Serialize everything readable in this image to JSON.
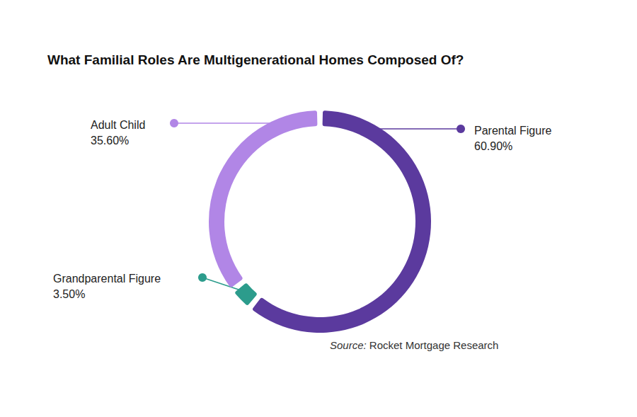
{
  "chart_data": {
    "type": "pie",
    "title": "What Familial Roles Are Multigenerational Homes Composed Of?",
    "categories": [
      "Parental Figure",
      "Grandparental Figure",
      "Adult Child"
    ],
    "values": [
      60.9,
      3.5,
      35.6
    ],
    "value_labels": [
      "60.90%",
      "3.50%",
      "35.60%"
    ],
    "colors": [
      "#5b3a9e",
      "#2c9c8c",
      "#b186e6"
    ],
    "data_labels": true,
    "annotations": [
      "Source: Rocket Mortgage Research"
    ]
  }
}
